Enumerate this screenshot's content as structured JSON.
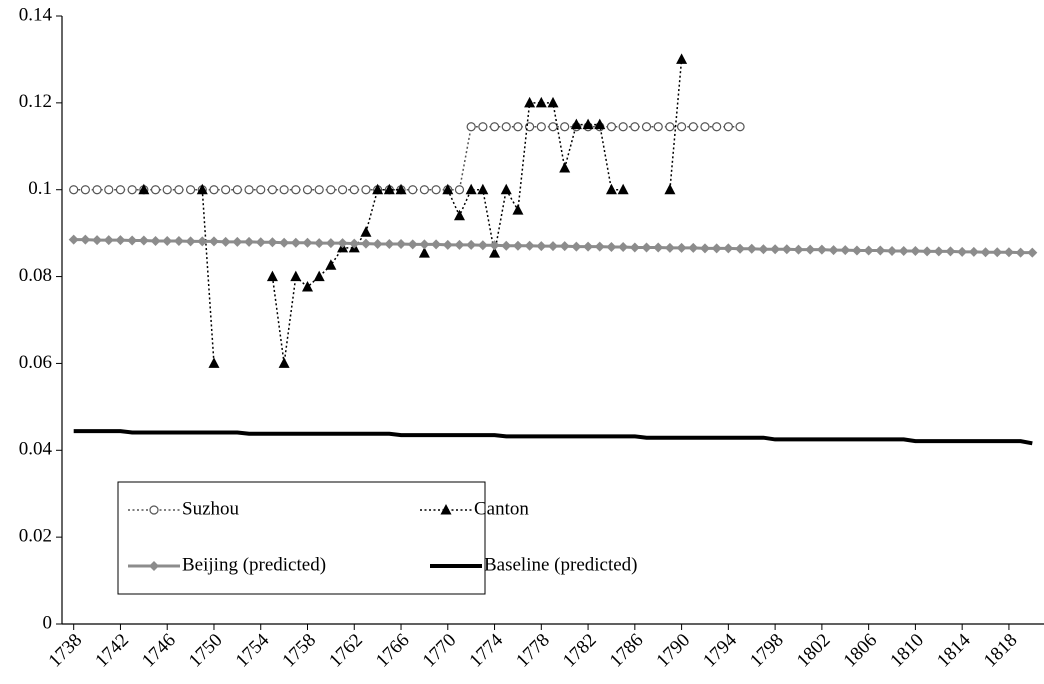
{
  "chart_data": {
    "type": "line",
    "x": [
      1738,
      1739,
      1740,
      1741,
      1742,
      1743,
      1744,
      1745,
      1746,
      1747,
      1748,
      1749,
      1750,
      1751,
      1752,
      1753,
      1754,
      1755,
      1756,
      1757,
      1758,
      1759,
      1760,
      1761,
      1762,
      1763,
      1764,
      1765,
      1766,
      1767,
      1768,
      1769,
      1770,
      1771,
      1772,
      1773,
      1774,
      1775,
      1776,
      1777,
      1778,
      1779,
      1780,
      1781,
      1782,
      1783,
      1784,
      1785,
      1786,
      1787,
      1788,
      1789,
      1790,
      1791,
      1792,
      1793,
      1794,
      1795,
      1796,
      1797,
      1798,
      1799,
      1800,
      1801,
      1802,
      1803,
      1804,
      1805,
      1806,
      1807,
      1808,
      1809,
      1810,
      1811,
      1812,
      1813,
      1814,
      1815,
      1816,
      1817,
      1818,
      1819,
      1820
    ],
    "xlim": [
      1737,
      1821
    ],
    "xticks": [
      1738,
      1742,
      1746,
      1750,
      1754,
      1758,
      1762,
      1766,
      1770,
      1774,
      1778,
      1782,
      1786,
      1790,
      1794,
      1798,
      1802,
      1806,
      1810,
      1814,
      1818
    ],
    "ylim": [
      0,
      0.14
    ],
    "yticks": [
      0,
      0.02,
      0.04,
      0.06,
      0.08,
      0.1,
      0.12,
      0.14
    ],
    "series": [
      {
        "name": "Suzhou",
        "color": "#555555",
        "marker": "circle",
        "line_style": "dotted",
        "line_width": 1.5,
        "values": [
          0.1,
          0.1,
          0.1,
          0.1,
          0.1,
          0.1,
          0.1,
          0.1,
          0.1,
          0.1,
          0.1,
          0.1,
          0.1,
          0.1,
          0.1,
          0.1,
          0.1,
          0.1,
          0.1,
          0.1,
          0.1,
          0.1,
          0.1,
          0.1,
          0.1,
          0.1,
          0.1,
          0.1,
          0.1,
          0.1,
          0.1,
          0.1,
          0.1,
          0.1,
          0.1145,
          0.1145,
          0.1145,
          0.1145,
          0.1145,
          0.1145,
          0.1145,
          0.1145,
          0.1145,
          0.1145,
          0.1145,
          0.1145,
          0.1145,
          0.1145,
          0.1145,
          0.1145,
          0.1145,
          0.1145,
          0.1145,
          0.1145,
          0.1145,
          0.1145,
          0.1145,
          0.1145,
          null,
          null,
          null,
          null,
          null,
          null,
          null,
          null,
          null,
          null,
          null,
          null,
          null,
          null,
          null,
          null,
          null,
          null,
          null,
          null,
          null,
          null,
          null,
          null,
          null
        ]
      },
      {
        "name": "Canton",
        "color": "#000000",
        "marker": "triangle",
        "line_style": "dotted",
        "line_width": 1.5,
        "values": [
          null,
          null,
          null,
          null,
          null,
          null,
          0.1,
          null,
          null,
          null,
          null,
          0.1,
          0.06,
          null,
          null,
          null,
          null,
          0.08,
          0.06,
          0.08,
          0.0776,
          0.08,
          0.0826,
          0.0866,
          0.0866,
          0.0902,
          0.1,
          0.1,
          0.1,
          null,
          0.0854,
          null,
          0.1,
          0.094,
          0.1,
          0.1,
          0.0854,
          0.1,
          0.0953,
          0.12,
          0.12,
          0.12,
          0.105,
          0.115,
          0.115,
          0.115,
          0.1,
          0.1,
          null,
          null,
          null,
          0.1,
          0.13,
          null,
          null,
          null,
          null,
          null,
          null,
          null,
          null,
          null,
          null,
          null,
          null,
          null,
          null,
          null,
          null,
          null,
          null,
          null,
          null,
          null,
          null,
          null,
          null,
          null,
          null,
          null,
          null,
          null,
          null
        ]
      },
      {
        "name": "Beijing (predicted)",
        "color": "#8c8c8c",
        "marker": "diamond",
        "line_style": "solid",
        "line_width": 3,
        "values": [
          0.0885,
          0.0885,
          0.0884,
          0.0884,
          0.0884,
          0.0883,
          0.0883,
          0.0882,
          0.0882,
          0.0882,
          0.0881,
          0.0881,
          0.0881,
          0.088,
          0.088,
          0.088,
          0.0879,
          0.0879,
          0.0878,
          0.0878,
          0.0878,
          0.0877,
          0.0877,
          0.0877,
          0.0876,
          0.0876,
          0.0875,
          0.0875,
          0.0875,
          0.0874,
          0.0874,
          0.0874,
          0.0873,
          0.0873,
          0.0873,
          0.0872,
          0.0872,
          0.0871,
          0.0871,
          0.0871,
          0.087,
          0.087,
          0.087,
          0.0869,
          0.0869,
          0.0869,
          0.0868,
          0.0868,
          0.0867,
          0.0867,
          0.0867,
          0.0866,
          0.0866,
          0.0866,
          0.0865,
          0.0865,
          0.0865,
          0.0864,
          0.0864,
          0.0863,
          0.0863,
          0.0863,
          0.0862,
          0.0862,
          0.0862,
          0.0861,
          0.0861,
          0.086,
          0.086,
          0.086,
          0.0859,
          0.0859,
          0.0859,
          0.0858,
          0.0858,
          0.0858,
          0.0857,
          0.0857,
          0.0856,
          0.0856,
          0.0856,
          0.0855,
          0.0855
        ]
      },
      {
        "name": "Baseline (predicted)",
        "color": "#000000",
        "marker": "none",
        "line_style": "solid",
        "line_width": 4,
        "values": [
          0.0444,
          0.0444,
          0.0444,
          0.0444,
          0.0444,
          0.0441,
          0.0441,
          0.0441,
          0.0441,
          0.0441,
          0.0441,
          0.0441,
          0.0441,
          0.0441,
          0.0441,
          0.0438,
          0.0438,
          0.0438,
          0.0438,
          0.0438,
          0.0438,
          0.0438,
          0.0438,
          0.0438,
          0.0438,
          0.0438,
          0.0438,
          0.0438,
          0.0435,
          0.0435,
          0.0435,
          0.0435,
          0.0435,
          0.0435,
          0.0435,
          0.0435,
          0.0435,
          0.0432,
          0.0432,
          0.0432,
          0.0432,
          0.0432,
          0.0432,
          0.0432,
          0.0432,
          0.0432,
          0.0432,
          0.0432,
          0.0432,
          0.0429,
          0.0429,
          0.0429,
          0.0429,
          0.0429,
          0.0429,
          0.0429,
          0.0429,
          0.0429,
          0.0429,
          0.0429,
          0.0425,
          0.0425,
          0.0425,
          0.0425,
          0.0425,
          0.0425,
          0.0425,
          0.0425,
          0.0425,
          0.0425,
          0.0425,
          0.0425,
          0.0421,
          0.0421,
          0.0421,
          0.0421,
          0.0421,
          0.0421,
          0.0421,
          0.0421,
          0.0421,
          0.0421,
          0.0416
        ]
      }
    ]
  }
}
